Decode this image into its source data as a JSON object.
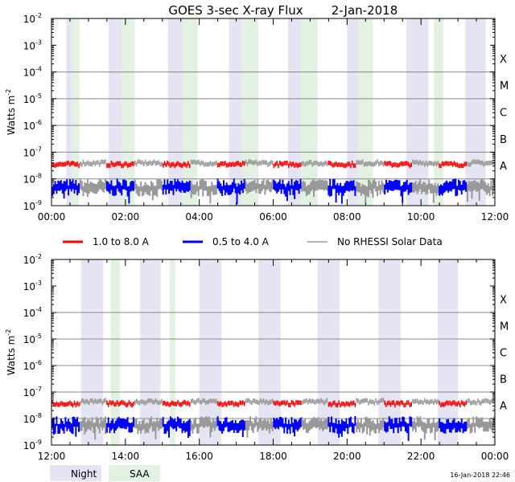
{
  "title": "GOES 3-sec X-ray Flux",
  "date": "2-Jan-2018",
  "footer_timestamp": "16-Jan-2018 22:46",
  "colors": {
    "long_channel": "#ff0000",
    "short_channel": "#0000ff",
    "no_rhessi": "#999999",
    "night": "#e4e4f2",
    "saa": "#e2f1e2",
    "gridline": "#888888"
  },
  "legend": [
    {
      "label": "1.0 to 8.0 A",
      "color": "#ff0000"
    },
    {
      "label": "0.5 to 4.0 A",
      "color": "#0000ff"
    },
    {
      "label": "No RHESSI Solar Data",
      "color": "#999999"
    }
  ],
  "shading_legend": [
    {
      "label": "Night",
      "color": "#e4e4f2"
    },
    {
      "label": "SAA",
      "color": "#e2f1e2"
    }
  ],
  "chart_data": [
    {
      "type": "line",
      "title": "GOES 3-sec X-ray Flux 2-Jan-2018",
      "ylabel_text": "Watts m",
      "ylabel_sup": "-2",
      "yscale": "log",
      "ylim": [
        1e-09,
        0.01
      ],
      "ytick_exponents": [
        -9,
        -8,
        -7,
        -6,
        -5,
        -4,
        -3,
        -2
      ],
      "flare_classes": [
        "A",
        "B",
        "C",
        "M",
        "X"
      ],
      "xlim_hours": [
        0,
        12
      ],
      "x_tick_labels": [
        "00:00",
        "02:00",
        "04:00",
        "06:00",
        "08:00",
        "10:00",
        "12:00"
      ],
      "night_intervals_hours": [
        [
          0.4,
          0.6
        ],
        [
          1.55,
          1.9
        ],
        [
          3.15,
          3.55
        ],
        [
          4.8,
          5.15
        ],
        [
          6.4,
          6.75
        ],
        [
          8.0,
          8.3
        ],
        [
          9.6,
          10.2
        ],
        [
          11.2,
          11.75
        ]
      ],
      "saa_intervals_hours": [
        [
          0.55,
          0.75
        ],
        [
          1.9,
          2.25
        ],
        [
          3.55,
          3.95
        ],
        [
          5.15,
          5.6
        ],
        [
          6.75,
          7.2
        ],
        [
          8.3,
          8.7
        ],
        [
          10.35,
          10.6
        ]
      ],
      "series": [
        {
          "name": "1.0 to 8.0 A",
          "approx_level": 3.4e-08
        },
        {
          "name": "0.5 to 4.0 A",
          "approx_level": 5e-09
        },
        {
          "name": "No RHESSI Solar Data",
          "approx_level": 3.8e-08
        }
      ]
    },
    {
      "type": "line",
      "ylabel_text": "Watts m",
      "ylabel_sup": "-2",
      "yscale": "log",
      "ylim": [
        1e-09,
        0.01
      ],
      "ytick_exponents": [
        -9,
        -8,
        -7,
        -6,
        -5,
        -4,
        -3,
        -2
      ],
      "flare_classes": [
        "A",
        "B",
        "C",
        "M",
        "X"
      ],
      "xlim_hours": [
        12,
        24
      ],
      "x_tick_labels": [
        "12:00",
        "14:00",
        "16:00",
        "18:00",
        "20:00",
        "22:00",
        "00:00"
      ],
      "night_intervals_hours": [
        [
          12.8,
          13.4
        ],
        [
          14.4,
          14.95
        ],
        [
          16.0,
          16.6
        ],
        [
          17.6,
          18.2
        ],
        [
          19.2,
          19.8
        ],
        [
          20.85,
          21.45
        ],
        [
          22.45,
          23.0
        ],
        [
          23.95,
          24.0
        ]
      ],
      "saa_intervals_hours": [
        [
          13.6,
          13.85
        ],
        [
          15.2,
          15.35
        ]
      ],
      "series": [
        {
          "name": "1.0 to 8.0 A",
          "approx_level": 3.5e-08
        },
        {
          "name": "0.5 to 4.0 A",
          "approx_level": 6e-09
        },
        {
          "name": "No RHESSI Solar Data",
          "approx_level": 4.2e-08
        }
      ]
    }
  ]
}
